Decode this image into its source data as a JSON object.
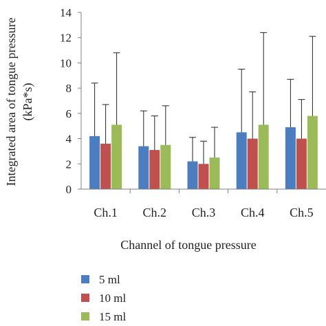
{
  "chart_data": {
    "type": "bar",
    "categories": [
      "Ch.1",
      "Ch.2",
      "Ch.3",
      "Ch.4",
      "Ch.5"
    ],
    "series": [
      {
        "name": "5 ml",
        "color": "#4a7ec0",
        "values": [
          4.2,
          3.4,
          2.2,
          4.5,
          4.9
        ],
        "error_upper": [
          8.4,
          6.2,
          4.1,
          9.5,
          8.7
        ]
      },
      {
        "name": "10 ml",
        "color": "#c0504d",
        "values": [
          3.6,
          3.1,
          2.0,
          4.0,
          4.0
        ],
        "error_upper": [
          6.7,
          5.8,
          3.8,
          7.7,
          7.1
        ]
      },
      {
        "name": "15 ml",
        "color": "#9bbb59",
        "values": [
          5.1,
          3.5,
          2.5,
          5.1,
          5.8
        ],
        "error_upper": [
          10.8,
          6.6,
          4.9,
          12.4,
          12.1
        ]
      }
    ],
    "title": "",
    "xlabel": "Channel of tongue pressure",
    "ylabel_line1": "Integrated area of tongue pressure",
    "ylabel_line2": "(kPa*s)",
    "ylim": [
      0,
      14
    ],
    "yticks": [
      "0",
      "2",
      "4",
      "6",
      "8",
      "10",
      "12",
      "14"
    ],
    "grid": false,
    "legend_position": "bottom-left"
  }
}
